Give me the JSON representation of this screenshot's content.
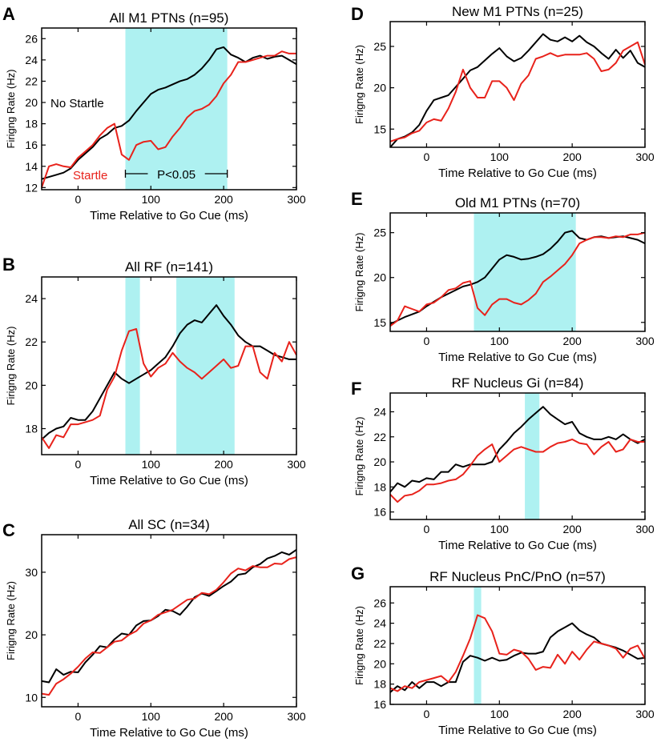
{
  "figure": {
    "x_axis_label": "Time Relative to Go Cue (ms)",
    "y_axis_label": "Firigng Rate (Hz)",
    "series_names": [
      "No Startle",
      "Startle"
    ],
    "series_colors": [
      "#000000",
      "#e8221b"
    ],
    "shade_color": "#aef1f1"
  },
  "chart_data": [
    {
      "id": "A",
      "type": "line",
      "panel_label": "A",
      "title": "All M1 PTNs (n=95)",
      "xlabel": "Time Relative to Go Cue (ms)",
      "ylabel": "Firigng Rate (Hz)",
      "xlim": [
        -50,
        300
      ],
      "ylim": [
        11.8,
        27
      ],
      "xticks": [
        0,
        100,
        200,
        300
      ],
      "yticks": [
        12,
        14,
        16,
        18,
        20,
        22,
        24,
        26
      ],
      "shaded": [
        [
          65,
          205
        ]
      ],
      "x": [
        -50,
        -40,
        -30,
        -20,
        -10,
        0,
        10,
        20,
        30,
        40,
        50,
        60,
        70,
        80,
        90,
        100,
        110,
        120,
        130,
        140,
        150,
        160,
        170,
        180,
        190,
        200,
        210,
        220,
        230,
        240,
        250,
        260,
        270,
        280,
        290,
        300
      ],
      "series": [
        {
          "name": "No Startle",
          "values": [
            12.8,
            13.0,
            13.2,
            13.4,
            13.8,
            14.6,
            15.2,
            15.8,
            16.6,
            17.0,
            17.6,
            17.8,
            18.3,
            19.2,
            20.0,
            20.8,
            21.2,
            21.4,
            21.7,
            22.0,
            22.2,
            22.6,
            23.2,
            24.0,
            25.0,
            25.2,
            24.5,
            24.2,
            23.8,
            24.2,
            24.4,
            24.1,
            24.3,
            24.4,
            24.0,
            23.6
          ]
        },
        {
          "name": "Startle",
          "values": [
            12.0,
            14.0,
            14.2,
            14.0,
            13.9,
            14.8,
            15.4,
            16.0,
            16.9,
            17.6,
            18.0,
            15.1,
            14.6,
            16.0,
            16.3,
            16.4,
            15.6,
            15.8,
            16.8,
            17.6,
            18.6,
            19.2,
            19.4,
            19.8,
            20.6,
            21.8,
            22.6,
            23.8,
            23.8,
            24.0,
            24.2,
            24.4,
            24.4,
            24.8,
            24.6,
            24.6
          ]
        }
      ],
      "annotations": {
        "no_startle_label": "No Startle",
        "startle_label": "Startle",
        "significance": "P<0.05"
      }
    },
    {
      "id": "B",
      "type": "line",
      "panel_label": "B",
      "title": "All RF (n=141)",
      "xlabel": "Time Relative to Go Cue (ms)",
      "ylabel": "Firigng Rate (Hz)",
      "xlim": [
        -50,
        300
      ],
      "ylim": [
        16.8,
        25
      ],
      "xticks": [
        0,
        100,
        200,
        300
      ],
      "yticks": [
        18,
        20,
        22,
        24
      ],
      "shaded": [
        [
          65,
          85
        ],
        [
          135,
          215
        ]
      ],
      "x": [
        -50,
        -40,
        -30,
        -20,
        -10,
        0,
        10,
        20,
        30,
        40,
        50,
        60,
        70,
        80,
        90,
        100,
        110,
        120,
        130,
        140,
        150,
        160,
        170,
        180,
        190,
        200,
        210,
        220,
        230,
        240,
        250,
        260,
        270,
        280,
        290,
        300
      ],
      "series": [
        {
          "name": "No Startle",
          "values": [
            17.5,
            17.8,
            18.0,
            18.1,
            18.5,
            18.4,
            18.4,
            18.8,
            19.4,
            20.0,
            20.6,
            20.3,
            20.1,
            20.3,
            20.5,
            20.7,
            21.0,
            21.3,
            21.8,
            22.4,
            22.8,
            23.0,
            22.9,
            23.3,
            23.7,
            23.2,
            22.8,
            22.3,
            22.0,
            21.8,
            21.8,
            21.6,
            21.4,
            21.3,
            21.2,
            21.2
          ]
        },
        {
          "name": "Startle",
          "values": [
            17.6,
            17.1,
            17.7,
            17.6,
            18.2,
            18.2,
            18.3,
            18.4,
            18.6,
            19.8,
            20.4,
            21.6,
            22.5,
            22.6,
            21.0,
            20.4,
            20.8,
            21.0,
            21.5,
            21.1,
            20.8,
            20.6,
            20.3,
            20.6,
            20.9,
            21.2,
            20.8,
            20.9,
            21.8,
            21.8,
            20.6,
            20.3,
            21.5,
            21.1,
            22.0,
            21.4
          ]
        }
      ]
    },
    {
      "id": "C",
      "type": "line",
      "panel_label": "C",
      "title": "All SC (n=34)",
      "xlabel": "Time Relative to Go Cue (ms)",
      "ylabel": "Firigng Rate (Hz)",
      "xlim": [
        -50,
        300
      ],
      "ylim": [
        8.5,
        36
      ],
      "xticks": [
        0,
        100,
        200,
        300
      ],
      "yticks": [
        10,
        20,
        30
      ],
      "shaded": [],
      "x": [
        -50,
        -40,
        -30,
        -20,
        -10,
        0,
        10,
        20,
        30,
        40,
        50,
        60,
        70,
        80,
        90,
        100,
        110,
        120,
        130,
        140,
        150,
        160,
        170,
        180,
        190,
        200,
        210,
        220,
        230,
        240,
        250,
        260,
        270,
        280,
        290,
        300
      ],
      "series": [
        {
          "name": "No Startle",
          "values": [
            12.6,
            12.4,
            14.5,
            13.6,
            14.1,
            14.0,
            15.6,
            16.8,
            18.2,
            18.0,
            19.3,
            20.2,
            20.0,
            21.5,
            22.2,
            22.3,
            23.0,
            24.0,
            23.8,
            23.2,
            24.5,
            26.0,
            26.6,
            26.2,
            27.0,
            27.8,
            28.5,
            29.6,
            29.8,
            30.8,
            31.3,
            32.2,
            32.6,
            33.2,
            32.8,
            33.6
          ]
        },
        {
          "name": "Startle",
          "values": [
            10.6,
            10.4,
            12.2,
            12.9,
            13.8,
            14.9,
            16.2,
            17.2,
            17.1,
            18.0,
            18.9,
            19.1,
            20.0,
            20.6,
            21.8,
            22.3,
            23.2,
            23.6,
            24.0,
            24.8,
            25.6,
            25.8,
            26.7,
            26.5,
            27.2,
            28.4,
            29.8,
            30.6,
            30.3,
            31.0,
            30.8,
            30.8,
            31.4,
            31.3,
            32.1,
            32.4
          ]
        }
      ]
    },
    {
      "id": "D",
      "type": "line",
      "panel_label": "D",
      "title": "New M1 PTNs (n=25)",
      "xlabel": "Time Relative to Go Cue (ms)",
      "ylabel": "Firigng Rate (Hz)",
      "xlim": [
        -50,
        300
      ],
      "ylim": [
        12.8,
        28
      ],
      "xticks": [
        0,
        100,
        200,
        300
      ],
      "yticks": [
        15,
        20,
        25
      ],
      "shaded": [],
      "x": [
        -50,
        -40,
        -30,
        -20,
        -10,
        0,
        10,
        20,
        30,
        40,
        50,
        60,
        70,
        80,
        90,
        100,
        110,
        120,
        130,
        140,
        150,
        160,
        170,
        180,
        190,
        200,
        210,
        220,
        230,
        240,
        250,
        260,
        270,
        280,
        290,
        300
      ],
      "series": [
        {
          "name": "No Startle",
          "values": [
            12.8,
            13.8,
            14.1,
            14.6,
            15.5,
            17.2,
            18.5,
            18.8,
            19.1,
            20.1,
            21.1,
            22.1,
            22.5,
            23.3,
            24.1,
            24.8,
            23.8,
            23.2,
            23.6,
            24.5,
            25.5,
            26.5,
            25.8,
            25.6,
            26.1,
            25.6,
            26.3,
            25.5,
            25.0,
            24.2,
            23.5,
            24.6,
            23.6,
            24.5,
            23.0,
            22.5
          ]
        },
        {
          "name": "Startle",
          "values": [
            13.5,
            13.8,
            14.0,
            14.5,
            14.8,
            15.8,
            16.2,
            16.0,
            17.5,
            19.5,
            22.2,
            20.0,
            18.8,
            18.8,
            20.8,
            20.8,
            20.0,
            18.5,
            20.5,
            21.5,
            23.5,
            23.8,
            24.2,
            23.8,
            24.0,
            24.0,
            24.0,
            24.2,
            23.5,
            22.0,
            22.2,
            23.0,
            24.5,
            25.0,
            25.5,
            22.8
          ]
        }
      ]
    },
    {
      "id": "E",
      "type": "line",
      "panel_label": "E",
      "title": "Old M1 PTNs (n=70)",
      "xlabel": "Time Relative to Go Cue (ms)",
      "ylabel": "Firigng Rate (Hz)",
      "xlim": [
        -50,
        300
      ],
      "ylim": [
        14,
        27.2
      ],
      "xticks": [
        0,
        100,
        200,
        300
      ],
      "yticks": [
        15,
        20,
        25
      ],
      "shaded": [
        [
          65,
          205
        ]
      ],
      "x": [
        -50,
        -40,
        -30,
        -20,
        -10,
        0,
        10,
        20,
        30,
        40,
        50,
        60,
        70,
        80,
        90,
        100,
        110,
        120,
        130,
        140,
        150,
        160,
        170,
        180,
        190,
        200,
        210,
        220,
        230,
        240,
        250,
        260,
        270,
        280,
        290,
        300
      ],
      "series": [
        {
          "name": "No Startle",
          "values": [
            14.8,
            15.2,
            15.6,
            15.9,
            16.2,
            16.8,
            17.3,
            17.8,
            18.2,
            18.6,
            19.0,
            19.2,
            19.5,
            20.0,
            21.0,
            22.0,
            22.5,
            22.3,
            22.0,
            22.1,
            22.3,
            22.6,
            23.2,
            24.0,
            25.0,
            25.2,
            24.4,
            24.2,
            24.5,
            24.6,
            24.4,
            24.5,
            24.6,
            24.4,
            24.2,
            23.8
          ]
        },
        {
          "name": "Startle",
          "values": [
            14.6,
            15.2,
            16.8,
            16.5,
            16.2,
            17.0,
            17.2,
            17.8,
            18.6,
            18.8,
            19.4,
            19.6,
            16.6,
            15.8,
            17.0,
            17.6,
            17.6,
            17.2,
            17.0,
            17.5,
            18.2,
            19.5,
            20.1,
            20.8,
            21.5,
            22.5,
            23.8,
            24.2,
            24.5,
            24.5,
            24.4,
            24.6,
            24.5,
            24.8,
            24.8,
            25.0
          ]
        }
      ]
    },
    {
      "id": "F",
      "type": "line",
      "panel_label": "F",
      "title": "RF Nucleus Gi (n=84)",
      "xlabel": "Time Relative to Go Cue (ms)",
      "ylabel": "Firigng Rate (Hz)",
      "xlim": [
        -50,
        300
      ],
      "ylim": [
        15.4,
        25.5
      ],
      "xticks": [
        0,
        100,
        200,
        300
      ],
      "yticks": [
        16,
        18,
        20,
        22,
        24
      ],
      "shaded": [
        [
          135,
          155
        ]
      ],
      "x": [
        -50,
        -40,
        -30,
        -20,
        -10,
        0,
        10,
        20,
        30,
        40,
        50,
        60,
        70,
        80,
        90,
        100,
        110,
        120,
        130,
        140,
        150,
        160,
        170,
        180,
        190,
        200,
        210,
        220,
        230,
        240,
        250,
        260,
        270,
        280,
        290,
        300
      ],
      "series": [
        {
          "name": "No Startle",
          "values": [
            17.6,
            18.3,
            18.0,
            18.5,
            18.4,
            18.7,
            18.6,
            19.2,
            19.2,
            19.8,
            19.6,
            19.8,
            19.8,
            19.8,
            20.0,
            21.0,
            21.6,
            22.3,
            22.8,
            23.4,
            23.9,
            24.4,
            23.8,
            23.4,
            23.0,
            23.2,
            22.3,
            22.0,
            21.8,
            21.8,
            22.0,
            21.8,
            22.2,
            21.8,
            21.5,
            21.8
          ]
        },
        {
          "name": "Startle",
          "values": [
            17.4,
            16.8,
            17.3,
            17.4,
            17.7,
            18.2,
            18.2,
            18.3,
            18.5,
            18.6,
            19.0,
            19.7,
            20.5,
            21.0,
            21.4,
            20.0,
            20.5,
            21.0,
            21.2,
            21.0,
            20.8,
            20.8,
            21.2,
            21.5,
            21.6,
            21.8,
            21.5,
            21.4,
            20.6,
            21.2,
            21.6,
            20.8,
            21.0,
            21.8,
            21.6,
            21.6
          ]
        }
      ]
    },
    {
      "id": "G",
      "type": "line",
      "panel_label": "G",
      "title": "RF Nucleus PnC/PnO (n=57)",
      "xlabel": "Time Relative to Go Cue (ms)",
      "ylabel": "Firigng Rate (Hz)",
      "xlim": [
        -50,
        300
      ],
      "ylim": [
        16,
        27.6
      ],
      "xticks": [
        0,
        100,
        200,
        300
      ],
      "yticks": [
        16,
        18,
        20,
        22,
        24,
        26
      ],
      "shaded": [
        [
          65,
          75
        ]
      ],
      "x": [
        -50,
        -40,
        -30,
        -20,
        -10,
        0,
        10,
        20,
        30,
        40,
        50,
        60,
        70,
        80,
        90,
        100,
        110,
        120,
        130,
        140,
        150,
        160,
        170,
        180,
        190,
        200,
        210,
        220,
        230,
        240,
        250,
        260,
        270,
        280,
        290,
        300
      ],
      "series": [
        {
          "name": "No Startle",
          "values": [
            17.2,
            17.8,
            17.4,
            18.2,
            17.6,
            18.2,
            18.2,
            17.8,
            18.2,
            18.2,
            20.2,
            20.8,
            20.6,
            20.3,
            20.6,
            20.3,
            20.4,
            20.8,
            21.1,
            21.0,
            21.0,
            21.2,
            22.6,
            23.2,
            23.6,
            24.0,
            23.3,
            22.9,
            22.6,
            22.0,
            21.8,
            21.6,
            21.3,
            20.9,
            20.5,
            20.6
          ]
        },
        {
          "name": "Startle",
          "values": [
            17.6,
            17.3,
            17.8,
            17.6,
            18.2,
            18.4,
            18.6,
            18.8,
            18.2,
            19.2,
            20.8,
            22.5,
            24.8,
            24.5,
            23.2,
            21.0,
            20.9,
            21.4,
            21.2,
            20.5,
            19.4,
            19.7,
            19.6,
            20.9,
            20.0,
            21.2,
            20.4,
            21.4,
            22.2,
            22.0,
            21.8,
            21.5,
            20.6,
            21.5,
            21.8,
            20.5
          ]
        }
      ]
    }
  ]
}
